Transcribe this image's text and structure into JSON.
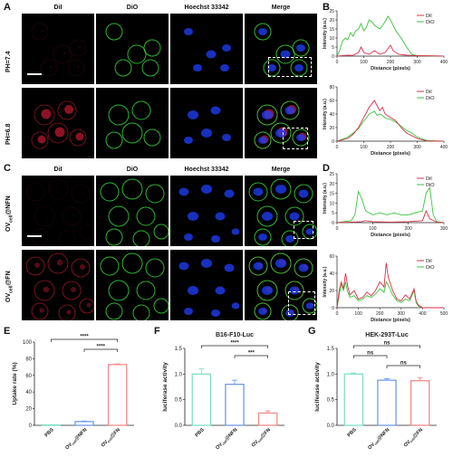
{
  "panels": {
    "A": "A",
    "B": "B",
    "C": "C",
    "D": "D",
    "E": "E",
    "F": "F",
    "G": "G"
  },
  "channels": [
    "DiI",
    "DiO",
    "Hoechst 33342",
    "Merge"
  ],
  "panelA": {
    "rows": [
      "PH=7.4",
      "PH=6.8"
    ]
  },
  "panelC": {
    "rows": [
      "OV",
      "OV"
    ],
    "row_subs": [
      "cell",
      "cell"
    ],
    "row_suffix": [
      "@NFN",
      "@FN"
    ]
  },
  "line_profiles": {
    "xlabel": "Distance (pixels)",
    "ylabel": "Intensity (a.u.)",
    "legend": [
      "DiI",
      "DiO"
    ],
    "colors": {
      "DiI": "#d9304a",
      "DiO": "#3cc43c"
    },
    "plots": [
      {
        "id": "B1",
        "yticks": [
          "0",
          "5",
          "10",
          "15",
          "20",
          "25"
        ],
        "xticks": [
          "0",
          "100",
          "200",
          "300",
          "400"
        ],
        "xmax": 400,
        "ymax": 25,
        "DiI": [
          [
            0,
            0
          ],
          [
            20,
            0.3
          ],
          [
            40,
            0.5
          ],
          [
            60,
            0.4
          ],
          [
            80,
            2
          ],
          [
            90,
            5
          ],
          [
            100,
            2
          ],
          [
            120,
            1
          ],
          [
            140,
            3
          ],
          [
            160,
            1
          ],
          [
            180,
            2
          ],
          [
            200,
            6
          ],
          [
            210,
            3
          ],
          [
            230,
            1
          ],
          [
            260,
            0.5
          ],
          [
            300,
            0.3
          ],
          [
            400,
            0
          ]
        ],
        "DiO": [
          [
            0,
            0
          ],
          [
            10,
            3
          ],
          [
            20,
            8
          ],
          [
            30,
            10
          ],
          [
            40,
            9
          ],
          [
            50,
            13
          ],
          [
            60,
            11
          ],
          [
            70,
            14
          ],
          [
            80,
            15
          ],
          [
            90,
            18
          ],
          [
            100,
            14
          ],
          [
            110,
            16
          ],
          [
            120,
            20
          ],
          [
            130,
            19
          ],
          [
            140,
            17
          ],
          [
            160,
            15
          ],
          [
            180,
            19
          ],
          [
            190,
            22
          ],
          [
            200,
            20
          ],
          [
            220,
            14
          ],
          [
            240,
            10
          ],
          [
            260,
            5
          ],
          [
            280,
            1
          ],
          [
            300,
            0.3
          ],
          [
            400,
            0
          ]
        ]
      },
      {
        "id": "B2",
        "yticks": [
          "0",
          "20",
          "40",
          "60",
          "80"
        ],
        "xticks": [
          "0",
          "100",
          "200",
          "300",
          "400"
        ],
        "xmax": 400,
        "ymax": 80,
        "DiI": [
          [
            0,
            0
          ],
          [
            20,
            2
          ],
          [
            40,
            4
          ],
          [
            60,
            10
          ],
          [
            80,
            20
          ],
          [
            100,
            35
          ],
          [
            110,
            42
          ],
          [
            120,
            50
          ],
          [
            130,
            55
          ],
          [
            140,
            60
          ],
          [
            150,
            52
          ],
          [
            160,
            45
          ],
          [
            170,
            50
          ],
          [
            180,
            40
          ],
          [
            200,
            35
          ],
          [
            220,
            30
          ],
          [
            240,
            20
          ],
          [
            260,
            12
          ],
          [
            280,
            8
          ],
          [
            300,
            4
          ],
          [
            320,
            2
          ],
          [
            340,
            0
          ],
          [
            400,
            0
          ]
        ],
        "DiO": [
          [
            0,
            0
          ],
          [
            20,
            3
          ],
          [
            40,
            6
          ],
          [
            60,
            12
          ],
          [
            80,
            18
          ],
          [
            100,
            30
          ],
          [
            110,
            34
          ],
          [
            120,
            40
          ],
          [
            130,
            42
          ],
          [
            140,
            44
          ],
          [
            150,
            38
          ],
          [
            160,
            40
          ],
          [
            170,
            38
          ],
          [
            180,
            34
          ],
          [
            200,
            32
          ],
          [
            220,
            28
          ],
          [
            240,
            22
          ],
          [
            260,
            16
          ],
          [
            280,
            12
          ],
          [
            300,
            6
          ],
          [
            320,
            3
          ],
          [
            340,
            1
          ],
          [
            400,
            0
          ]
        ]
      },
      {
        "id": "D1",
        "yticks": [
          "0",
          "5",
          "10",
          "15",
          "20",
          "25"
        ],
        "xticks": [
          "0",
          "100",
          "200",
          "300"
        ],
        "xmax": 300,
        "ymax": 25,
        "DiI": [
          [
            0,
            0
          ],
          [
            40,
            0.3
          ],
          [
            70,
            0.5
          ],
          [
            80,
            1
          ],
          [
            100,
            0.5
          ],
          [
            150,
            0.3
          ],
          [
            200,
            0.5
          ],
          [
            240,
            1
          ],
          [
            250,
            6
          ],
          [
            260,
            2
          ],
          [
            280,
            0.2
          ],
          [
            300,
            0
          ]
        ],
        "DiO": [
          [
            0,
            0
          ],
          [
            20,
            0.5
          ],
          [
            40,
            1
          ],
          [
            50,
            4
          ],
          [
            60,
            16
          ],
          [
            70,
            12
          ],
          [
            80,
            6
          ],
          [
            90,
            5
          ],
          [
            100,
            4
          ],
          [
            120,
            5
          ],
          [
            140,
            4
          ],
          [
            160,
            5
          ],
          [
            180,
            4
          ],
          [
            200,
            4
          ],
          [
            220,
            5
          ],
          [
            240,
            6
          ],
          [
            250,
            15
          ],
          [
            260,
            18
          ],
          [
            270,
            4
          ],
          [
            280,
            0.5
          ],
          [
            300,
            0
          ]
        ]
      },
      {
        "id": "D2",
        "yticks": [
          "0",
          "20",
          "40",
          "60"
        ],
        "xticks": [
          "0",
          "100",
          "200",
          "300",
          "400",
          "500"
        ],
        "xmax": 500,
        "ymax": 60,
        "DiI": [
          [
            0,
            0
          ],
          [
            10,
            20
          ],
          [
            20,
            30
          ],
          [
            30,
            22
          ],
          [
            40,
            40
          ],
          [
            50,
            25
          ],
          [
            60,
            15
          ],
          [
            80,
            20
          ],
          [
            100,
            10
          ],
          [
            120,
            12
          ],
          [
            140,
            18
          ],
          [
            160,
            14
          ],
          [
            180,
            20
          ],
          [
            200,
            30
          ],
          [
            220,
            24
          ],
          [
            230,
            52
          ],
          [
            240,
            35
          ],
          [
            260,
            20
          ],
          [
            280,
            10
          ],
          [
            300,
            8
          ],
          [
            320,
            15
          ],
          [
            340,
            10
          ],
          [
            360,
            22
          ],
          [
            370,
            8
          ],
          [
            380,
            3
          ],
          [
            400,
            0
          ],
          [
            500,
            0
          ]
        ],
        "DiO": [
          [
            0,
            0
          ],
          [
            10,
            15
          ],
          [
            20,
            28
          ],
          [
            30,
            20
          ],
          [
            40,
            30
          ],
          [
            50,
            18
          ],
          [
            60,
            12
          ],
          [
            80,
            14
          ],
          [
            100,
            8
          ],
          [
            120,
            10
          ],
          [
            140,
            14
          ],
          [
            160,
            12
          ],
          [
            180,
            16
          ],
          [
            200,
            22
          ],
          [
            220,
            18
          ],
          [
            230,
            30
          ],
          [
            240,
            26
          ],
          [
            260,
            15
          ],
          [
            280,
            8
          ],
          [
            300,
            6
          ],
          [
            320,
            10
          ],
          [
            340,
            8
          ],
          [
            360,
            20
          ],
          [
            370,
            6
          ],
          [
            380,
            2
          ],
          [
            400,
            0
          ],
          [
            500,
            0
          ]
        ]
      }
    ]
  },
  "chart_data": [
    {
      "id": "E",
      "type": "bar",
      "title": "",
      "categories": [
        "PBS",
        "OV@NFN",
        "OV@FN"
      ],
      "category_main": [
        "PBS",
        "OV",
        "OV"
      ],
      "category_sub": [
        "",
        "cell",
        "cell"
      ],
      "category_suffix": [
        "",
        "@NFN",
        "@FN"
      ],
      "values": [
        0.5,
        4.5,
        73
      ],
      "errors": [
        0.2,
        0.6,
        0.8
      ],
      "colors": [
        "#7fe0c8",
        "#6f9be8",
        "#f08a8a"
      ],
      "ylabel": "Uptake rate (%)",
      "ylim": [
        0,
        100
      ],
      "yticks": [
        "0",
        "20",
        "40",
        "60",
        "80",
        "100"
      ],
      "sig": [
        {
          "from": 0,
          "to": 2,
          "label": "****"
        },
        {
          "from": 1,
          "to": 2,
          "label": "****"
        }
      ]
    },
    {
      "id": "F",
      "type": "bar",
      "title": "B16-F10-Luc",
      "categories": [
        "PBS",
        "OV@NFN",
        "OV@FN"
      ],
      "category_main": [
        "PBS",
        "OV",
        "OV"
      ],
      "category_sub": [
        "",
        "cell",
        "cell"
      ],
      "category_suffix": [
        "",
        "@NFN",
        "@FN"
      ],
      "values": [
        1.0,
        0.8,
        0.24
      ],
      "errors": [
        0.1,
        0.08,
        0.04
      ],
      "colors": [
        "#7fe0c8",
        "#6f9be8",
        "#f08a8a"
      ],
      "ylabel": "luciferase activity",
      "ylim": [
        0,
        1.5
      ],
      "yticks": [
        "0.0",
        "0.5",
        "1.0",
        "1.5"
      ],
      "sig": [
        {
          "from": 0,
          "to": 2,
          "label": "****"
        },
        {
          "from": 1,
          "to": 2,
          "label": "***"
        }
      ]
    },
    {
      "id": "G",
      "type": "bar",
      "title": "HEK-293T-Luc",
      "categories": [
        "PBS",
        "OV@NFN",
        "OV@FN"
      ],
      "category_main": [
        "PBS",
        "OV",
        "OV"
      ],
      "category_sub": [
        "",
        "cell",
        "cell"
      ],
      "category_suffix": [
        "",
        "@NFN",
        "@FN"
      ],
      "values": [
        1.0,
        0.88,
        0.87
      ],
      "errors": [
        0.02,
        0.03,
        0.06
      ],
      "colors": [
        "#7fe0c8",
        "#6f9be8",
        "#f08a8a"
      ],
      "ylabel": "luciferase activity",
      "ylim": [
        0,
        1.5
      ],
      "yticks": [
        "0.0",
        "0.5",
        "1.0",
        "1.5"
      ],
      "sig": [
        {
          "from": 0,
          "to": 2,
          "label": "ns"
        },
        {
          "from": 0,
          "to": 1,
          "label": "ns"
        },
        {
          "from": 1,
          "to": 2,
          "label": "ns"
        }
      ]
    }
  ]
}
